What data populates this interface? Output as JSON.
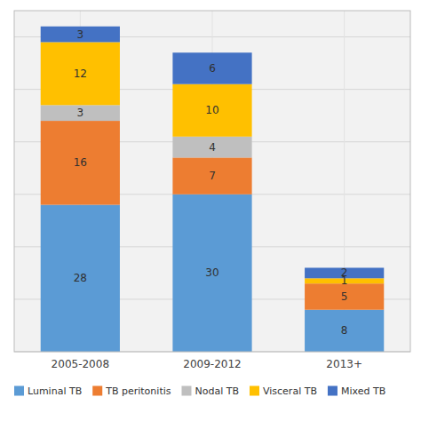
{
  "chart_data": {
    "type": "bar",
    "stacked": true,
    "categories": [
      "2005-2008",
      "2009-2012",
      "2013+"
    ],
    "series": [
      {
        "name": "Luminal TB",
        "color": "#5B9BD5",
        "values": [
          28,
          30,
          8
        ]
      },
      {
        "name": "TB peritonitis",
        "color": "#ED7D31",
        "values": [
          16,
          7,
          5
        ]
      },
      {
        "name": "Nodal TB",
        "color": "#BFBFBF",
        "values": [
          3,
          4,
          0
        ]
      },
      {
        "name": "Visceral TB",
        "color": "#FFC000",
        "values": [
          12,
          10,
          1
        ]
      },
      {
        "name": "Mixed TB",
        "color": "#4472C4",
        "values": [
          3,
          6,
          2
        ]
      }
    ],
    "ylim": [
      0,
      65
    ],
    "yticks": [
      0,
      10,
      20,
      30,
      40,
      50,
      60
    ],
    "grid": true,
    "legend": "bottom",
    "data_labels": true,
    "tick_labels": "x"
  }
}
